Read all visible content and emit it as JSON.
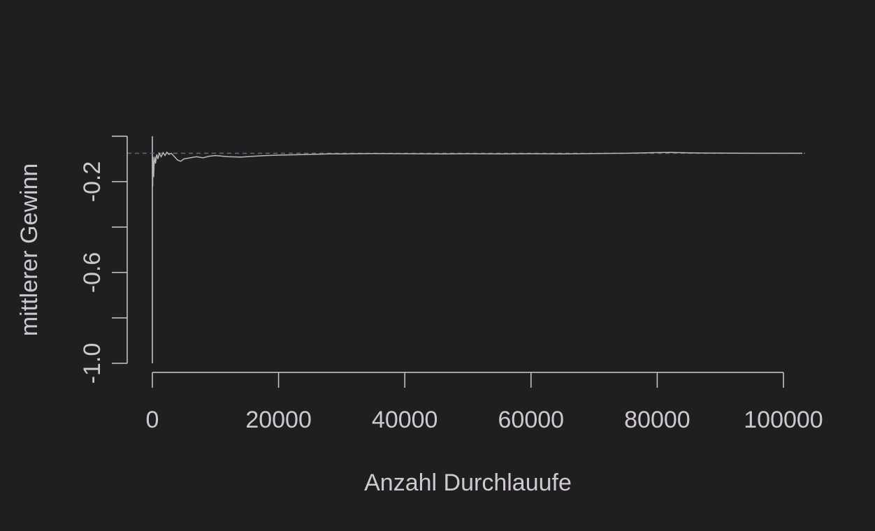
{
  "chart_data": {
    "type": "line",
    "title": "",
    "xlabel": "Anzahl Durchlauufe",
    "ylabel": "mittlerer Gewinn",
    "xlim": [
      0,
      100000
    ],
    "ylim": [
      -1.0,
      0.0
    ],
    "x_ticks": [
      0,
      20000,
      40000,
      60000,
      80000,
      100000
    ],
    "x_tick_labels": [
      "0",
      "20000",
      "40000",
      "60000",
      "80000",
      "100000"
    ],
    "y_ticks": [
      -1.0,
      -0.8,
      -0.6,
      -0.4,
      -0.2,
      0.0
    ],
    "y_tick_labels": [
      "-1.0",
      "",
      "-0.6",
      "",
      "-0.2",
      ""
    ],
    "grid": false,
    "legend": "none",
    "reference_line": {
      "y": -0.075,
      "style": "dashed"
    },
    "series": [
      {
        "x": [
          0,
          50,
          100,
          150,
          200,
          300,
          400,
          500,
          700,
          900,
          1100,
          1400,
          1700,
          2000,
          2300,
          2600,
          3000,
          3500,
          4000,
          4500,
          5000,
          6000,
          7000,
          8000,
          9000,
          10000,
          12000,
          14000,
          16000,
          18000,
          20000,
          22000,
          25000,
          28000,
          30000,
          35000,
          40000,
          45000,
          50000,
          55000,
          60000,
          65000,
          70000,
          75000,
          80000,
          82000,
          85000,
          88000,
          90000,
          95000,
          100000,
          103000
        ],
        "y": [
          -0.15,
          -0.22,
          -0.09,
          -0.13,
          -0.18,
          -0.11,
          -0.09,
          -0.12,
          -0.08,
          -0.1,
          -0.075,
          -0.09,
          -0.072,
          -0.085,
          -0.07,
          -0.08,
          -0.075,
          -0.09,
          -0.105,
          -0.11,
          -0.1,
          -0.095,
          -0.09,
          -0.095,
          -0.088,
          -0.085,
          -0.09,
          -0.092,
          -0.088,
          -0.085,
          -0.083,
          -0.082,
          -0.08,
          -0.078,
          -0.078,
          -0.076,
          -0.077,
          -0.078,
          -0.077,
          -0.078,
          -0.077,
          -0.078,
          -0.076,
          -0.075,
          -0.072,
          -0.071,
          -0.073,
          -0.074,
          -0.074,
          -0.075,
          -0.075,
          -0.075
        ]
      }
    ]
  },
  "colors": {
    "background": "#1f1f1f",
    "foreground": "#cfc8d3",
    "series": "#b8b8b8",
    "reference": "#7a5a86"
  }
}
